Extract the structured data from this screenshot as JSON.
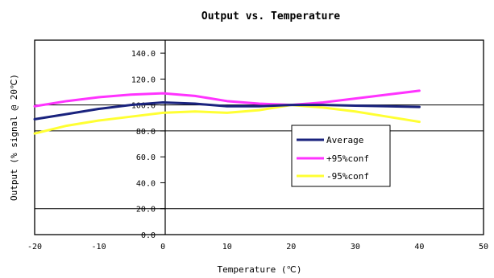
{
  "chart_data": {
    "type": "line",
    "title": "Output vs. Temperature",
    "xlabel": "Temperature (℃)",
    "ylabel": "Output (% signal @ 20℃)",
    "xlim": [
      -20,
      50
    ],
    "ylim": [
      0,
      150
    ],
    "x_ticks": [
      "-20",
      "-10",
      "0",
      "10",
      "20",
      "30",
      "40",
      "50"
    ],
    "y_ticks": [
      "0.0",
      "20.0",
      "40.0",
      "60.0",
      "80.0",
      "100.0",
      "120.0",
      "140.0"
    ],
    "grid_lines_at": [
      20,
      80,
      100
    ],
    "legend_position": "center-right",
    "series": [
      {
        "name": "Average",
        "color": "#1a237e",
        "x": [
          -20,
          -15,
          -10,
          -5,
          0,
          5,
          10,
          15,
          20,
          25,
          30,
          35,
          40
        ],
        "y": [
          89,
          93,
          97,
          100,
          102,
          101,
          99,
          99,
          100,
          100,
          99.5,
          99,
          98.5
        ]
      },
      {
        "name": "+95%conf",
        "color": "#ff33ff",
        "x": [
          -20,
          -15,
          -10,
          -5,
          0,
          5,
          10,
          15,
          20,
          25,
          30,
          35,
          40
        ],
        "y": [
          99,
          103,
          106,
          108,
          109,
          107,
          103,
          101,
          100,
          102,
          105,
          108,
          111
        ]
      },
      {
        "name": "-95%conf",
        "color": "#ffff33",
        "x": [
          -20,
          -15,
          -10,
          -5,
          0,
          5,
          10,
          15,
          20,
          25,
          30,
          35,
          40
        ],
        "y": [
          78,
          84,
          88,
          91,
          94,
          95,
          94,
          96,
          100,
          98,
          95,
          91,
          87
        ]
      }
    ]
  }
}
